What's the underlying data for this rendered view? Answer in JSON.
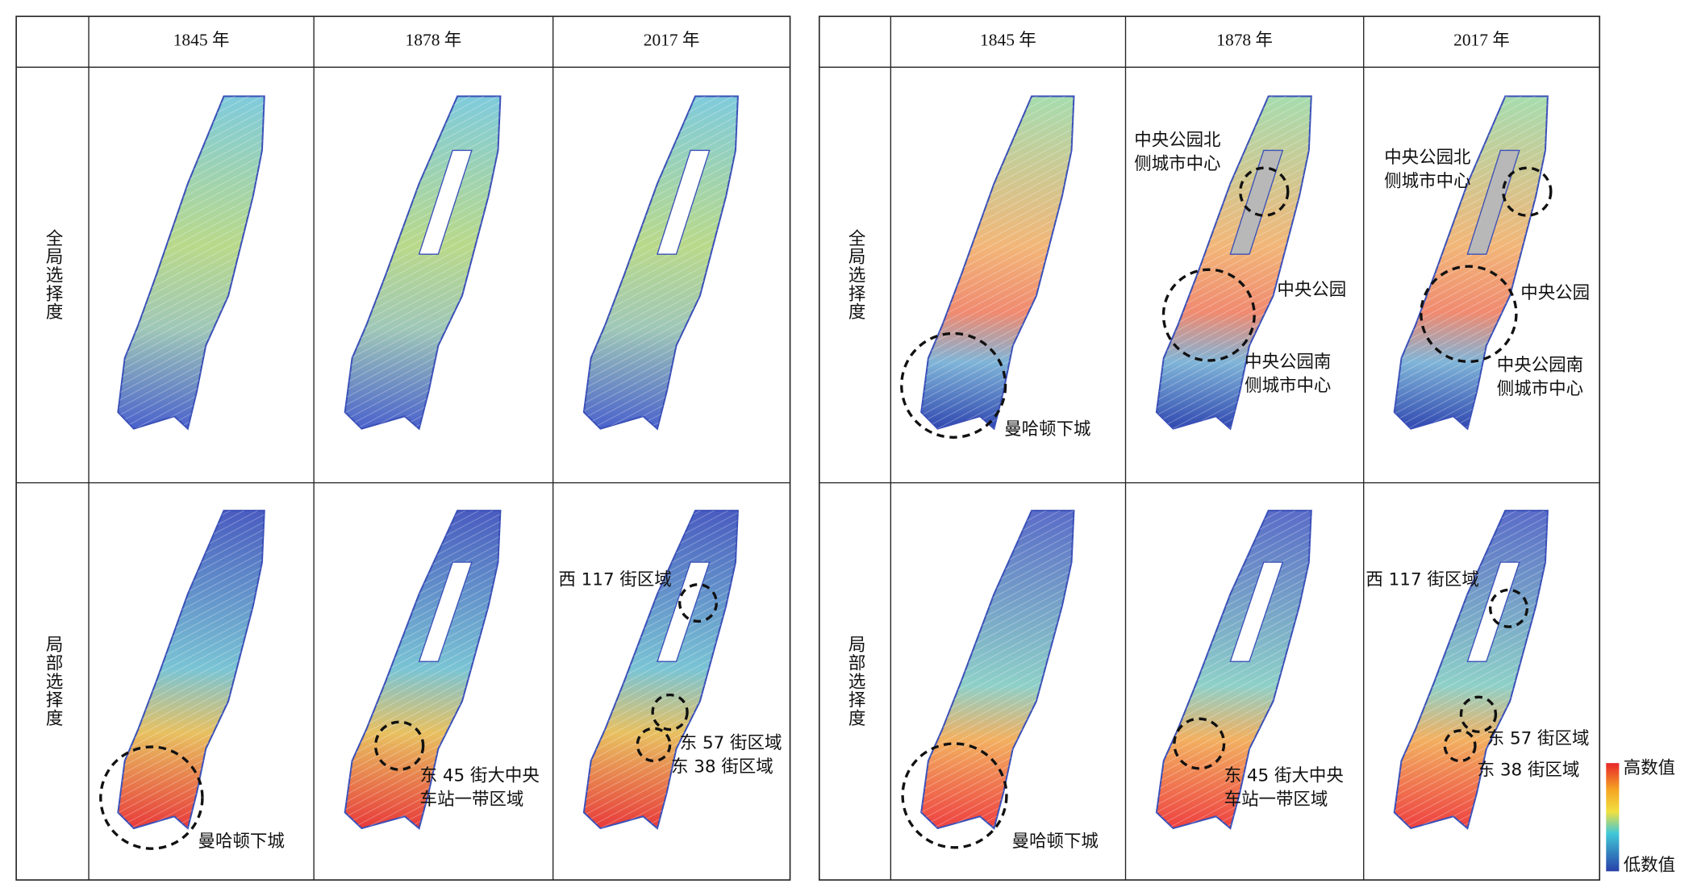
{
  "panels": [
    {
      "columns": [
        "1845 年",
        "1878 年",
        "2017 年"
      ],
      "rows": [
        {
          "label": "全局选择度",
          "cells": [
            [],
            [],
            []
          ]
        },
        {
          "label": "局部选择度",
          "cells": [
            [
              [
                "曼哈顿下城"
              ]
            ],
            [
              [
                "东 45 街大中央",
                "车站一带区域"
              ]
            ],
            [
              [
                "西 117 街区域"
              ],
              [
                "东 57 街区域"
              ],
              [
                "东 38 街区域"
              ]
            ]
          ]
        }
      ]
    },
    {
      "columns": [
        "1845 年",
        "1878 年",
        "2017 年"
      ],
      "rows": [
        {
          "label": "全局选择度",
          "cells": [
            [
              [
                "曼哈顿下城"
              ]
            ],
            [
              [
                "中央公园北",
                "侧城市中心"
              ],
              [
                "中央公园"
              ],
              [
                "中央公园南",
                "侧城市中心"
              ]
            ],
            [
              [
                "中央公园北",
                "侧城市中心"
              ],
              [
                "中央公园"
              ],
              [
                "中央公园南",
                "侧城市中心"
              ]
            ]
          ]
        },
        {
          "label": "局部选择度",
          "cells": [
            [
              [
                "曼哈顿下城"
              ]
            ],
            [
              [
                "东 45 街大中央",
                "车站一带区域"
              ]
            ],
            [
              [
                "西 117 街区域"
              ],
              [
                "东 57 街区域"
              ],
              [
                "东 38 街区域"
              ]
            ]
          ]
        }
      ]
    }
  ],
  "legend": {
    "high": "高数值",
    "low": "低数值"
  }
}
